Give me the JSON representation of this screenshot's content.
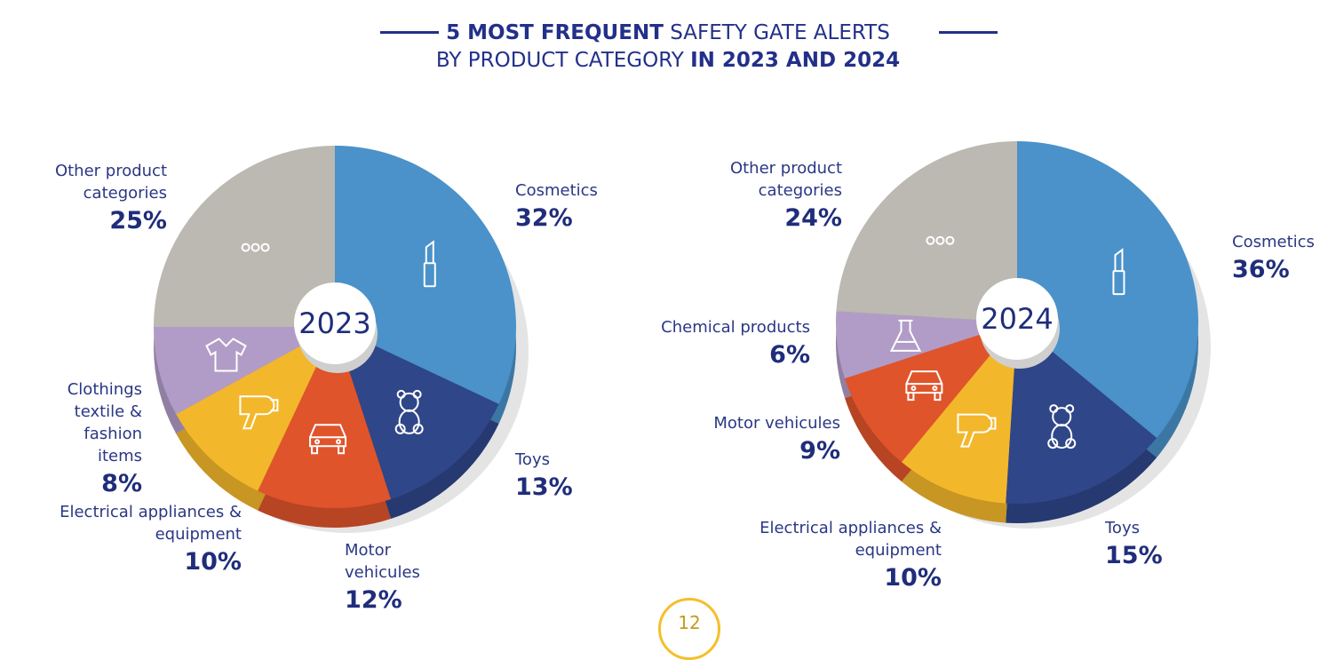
{
  "title": {
    "bold1": "5 MOST FREQUENT",
    "normal1": " SAFETY GATE ALERTS",
    "normal2": "BY PRODUCT CATEGORY ",
    "bold2": "IN 2023 AND 2024"
  },
  "page_number": "12",
  "colors": {
    "Cosmetics": "#4a92c9",
    "Toys": "#2f4689",
    "Motor vehicules": "#e0542b",
    "Electrical appliances & equipment": "#f3b72b",
    "Clothings textile & fashion items": "#b19cc7",
    "Chemical products": "#b19cc7",
    "Other product categories": "#bcb8b2",
    "text": "#1f2d7b"
  },
  "chart_data": [
    {
      "type": "pie",
      "title": "2023",
      "categories": [
        "Cosmetics",
        "Toys",
        "Motor vehicules",
        "Electrical appliances & equipment",
        "Clothings textile & fashion items",
        "Other product categories"
      ],
      "values": [
        32,
        13,
        12,
        10,
        8,
        25
      ],
      "labels": [
        "32%",
        "13%",
        "12%",
        "10%",
        "8%",
        "25%"
      ],
      "icons": [
        "lipstick-icon",
        "teddy-bear-icon",
        "car-icon",
        "hair-dryer-icon",
        "shirt-icon",
        "dots-icon"
      ]
    },
    {
      "type": "pie",
      "title": "2024",
      "categories": [
        "Cosmetics",
        "Toys",
        "Electrical appliances & equipment",
        "Motor vehicules",
        "Chemical products",
        "Other product categories"
      ],
      "values": [
        36,
        15,
        10,
        9,
        6,
        24
      ],
      "labels": [
        "36%",
        "15%",
        "10%",
        "9%",
        "6%",
        "24%"
      ],
      "icons": [
        "lipstick-icon",
        "teddy-bear-icon",
        "hair-dryer-icon",
        "car-icon",
        "flask-icon",
        "dots-icon"
      ]
    }
  ],
  "label_text": {
    "other": "Other product categories",
    "cosmetics": "Cosmetics",
    "toys": "Toys",
    "motor": "Motor vehicules",
    "electrical": "Electrical appliances & equipment",
    "clothing": "Clothings textile & fashion items",
    "chemical": "Chemical products"
  }
}
